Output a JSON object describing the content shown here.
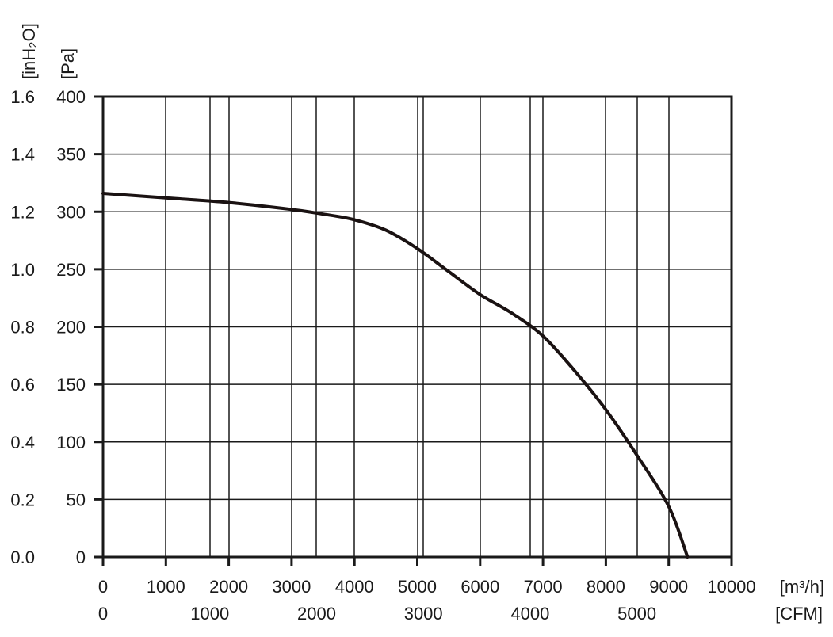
{
  "chart_data": {
    "type": "line",
    "title": "",
    "y_units": {
      "left": "[inH₂O]",
      "right": "[Pa]"
    },
    "x_units": {
      "top": "[m³/h]",
      "bottom": "[CFM]"
    },
    "y_ticks_inh2o": [
      "1.6",
      "1.4",
      "1.2",
      "1.0",
      "0.8",
      "0.6",
      "0.4",
      "0.2",
      "0.0"
    ],
    "y_ticks_pa": [
      "400",
      "350",
      "300",
      "250",
      "200",
      "150",
      "100",
      "50",
      "0"
    ],
    "x_ticks_m3h": [
      "0",
      "1000",
      "2000",
      "3000",
      "4000",
      "5000",
      "6000",
      "7000",
      "8000",
      "9000",
      "10000"
    ],
    "x_ticks_cfm": [
      "0",
      "1000",
      "2000",
      "3000",
      "4000",
      "5000"
    ],
    "ylim": [
      0,
      400
    ],
    "grid": true,
    "series": [
      {
        "x": [
          0,
          1000,
          2000,
          3000,
          3500,
          4000,
          4500,
          5000,
          5500,
          6000,
          6500,
          7000,
          7500,
          8000,
          8500,
          9000,
          9300
        ],
        "y": [
          316,
          312,
          308,
          302,
          298,
          293,
          284,
          268,
          248,
          228,
          212,
          192,
          162,
          128,
          88,
          44,
          0
        ]
      }
    ]
  }
}
